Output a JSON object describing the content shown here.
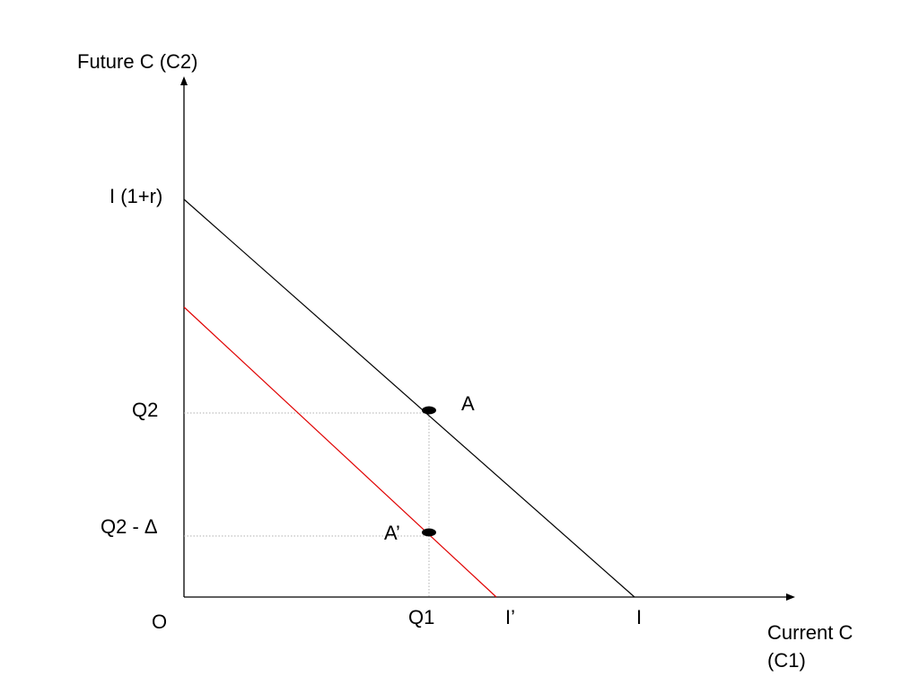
{
  "axes": {
    "y_title": "Future C (C2)",
    "x_title_line1": "Current C",
    "x_title_line2": "(C1)",
    "origin_label": "O"
  },
  "labels": {
    "y_intercept": "I (1+r)",
    "q2": "Q2",
    "q2_minus_delta": "Q2 - Δ",
    "q1": "Q1",
    "i_prime": "I’",
    "i": "I",
    "point_a": "A",
    "point_a_prime": "A’"
  },
  "colors": {
    "budget_line": "#000000",
    "shifted_line": "#e00000",
    "guide": "#b0b0b0",
    "point": "#000000"
  }
}
